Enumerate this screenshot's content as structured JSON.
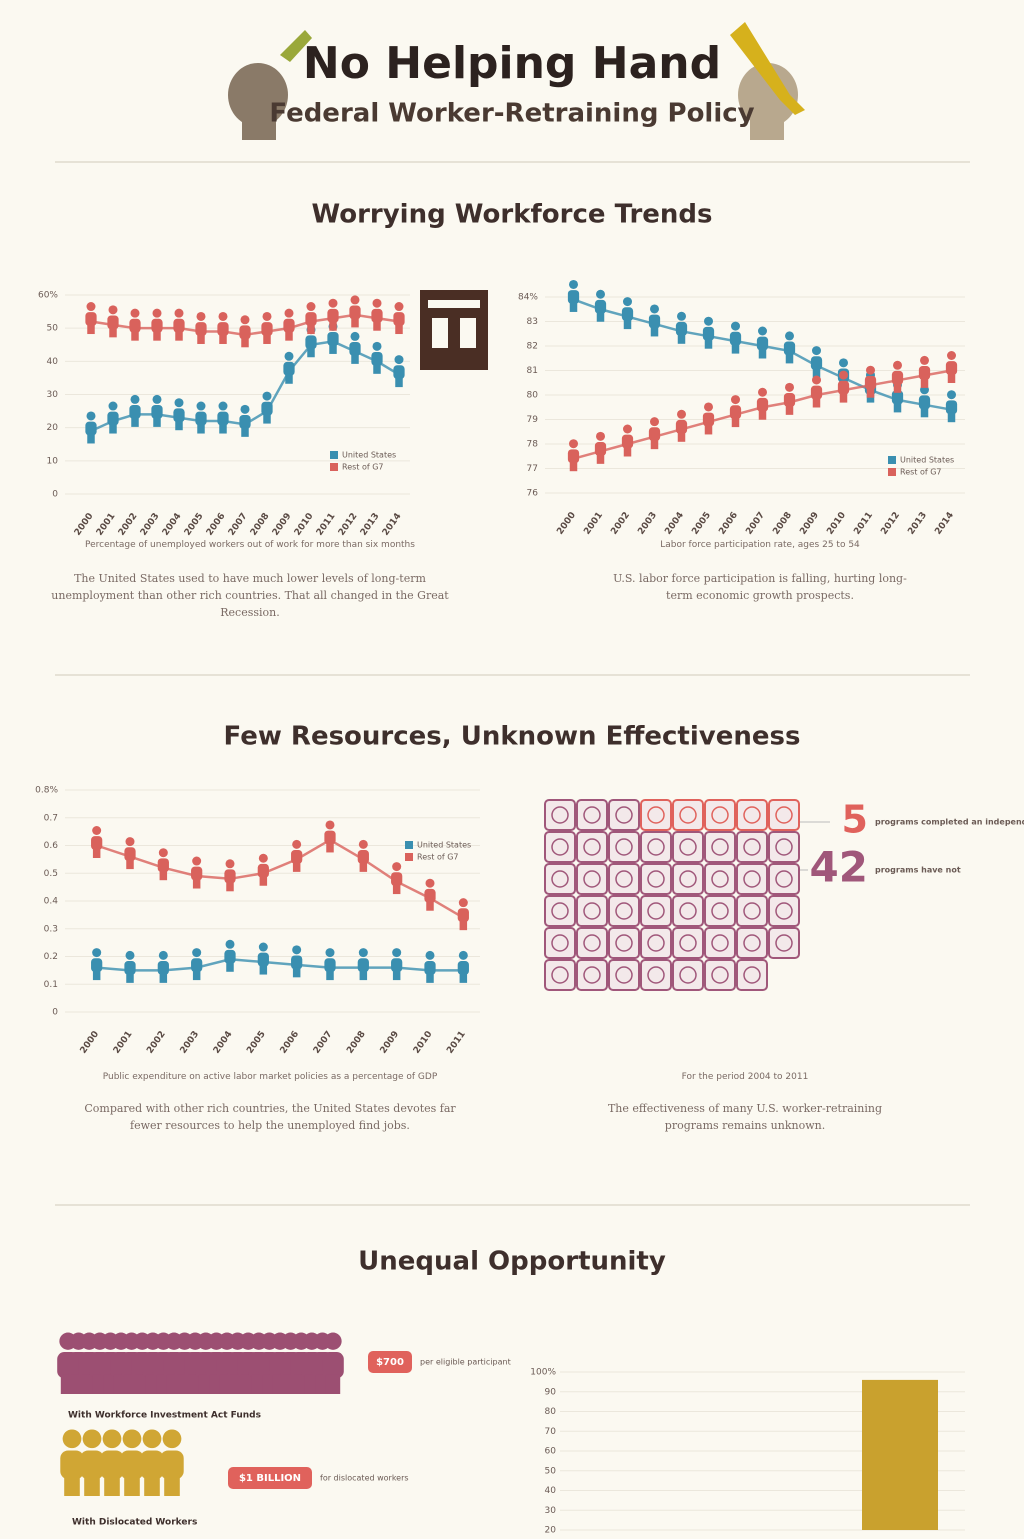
{
  "header": {
    "title": "No Helping Hand",
    "subtitle": "Federal Worker-Retraining Policy"
  },
  "sections": [
    {
      "title": "Worrying Workforce Trends"
    },
    {
      "title": "Few Resources, Unknown Effectiveness"
    },
    {
      "title": "Unequal Opportunity"
    }
  ],
  "chart_data": [
    {
      "type": "line",
      "caption": "Percentage of unemployed workers out of work for more than six months",
      "note": "The United States used to have much lower levels of long-term unemployment than other rich countries. That all changed in the Great Recession.",
      "categories": [
        "2000",
        "2001",
        "2002",
        "2003",
        "2004",
        "2005",
        "2006",
        "2007",
        "2008",
        "2009",
        "2010",
        "2011",
        "2012",
        "2013",
        "2014"
      ],
      "series": [
        {
          "name": "United States",
          "color": "#3a8fb0",
          "values": [
            19,
            22,
            24,
            24,
            23,
            22,
            22,
            21,
            25,
            37,
            45,
            46,
            43,
            40,
            36
          ]
        },
        {
          "name": "Rest of G7",
          "color": "#d9625c",
          "values": [
            52,
            51,
            50,
            50,
            50,
            49,
            49,
            48,
            49,
            50,
            52,
            53,
            54,
            53,
            52
          ]
        }
      ],
      "ylim": [
        0,
        60
      ],
      "yticks": [
        0,
        10,
        20,
        30,
        40,
        50,
        {
          "value": 60,
          "label": "60%"
        }
      ],
      "grid": true
    },
    {
      "type": "line",
      "caption": "Labor force participation rate, ages 25 to 54",
      "note": "U.S. labor force participation is falling, hurting long-term economic growth prospects.",
      "categories": [
        "2000",
        "2001",
        "2002",
        "2003",
        "2004",
        "2005",
        "2006",
        "2007",
        "2008",
        "2009",
        "2010",
        "2011",
        "2012",
        "2013",
        "2014"
      ],
      "series": [
        {
          "name": "United States",
          "color": "#3a8fb0",
          "values": [
            83.9,
            83.5,
            83.2,
            82.9,
            82.6,
            82.4,
            82.2,
            82.0,
            81.8,
            81.2,
            80.7,
            80.2,
            79.8,
            79.6,
            79.4
          ]
        },
        {
          "name": "Rest of G7",
          "color": "#d9625c",
          "values": [
            77.4,
            77.7,
            78.0,
            78.3,
            78.6,
            78.9,
            79.2,
            79.5,
            79.7,
            80.0,
            80.2,
            80.4,
            80.6,
            80.8,
            81.0
          ]
        }
      ],
      "ylim": [
        76,
        84
      ],
      "yticks": [
        76,
        77,
        78,
        79,
        80,
        81,
        82,
        83,
        {
          "value": 84,
          "label": "84%"
        }
      ],
      "grid": true
    },
    {
      "type": "line",
      "caption": "Public expenditure on active labor market policies as a percentage of GDP",
      "note": "Compared with other rich countries, the United States devotes far fewer resources to help the unemployed find jobs.",
      "categories": [
        "2000",
        "2001",
        "2002",
        "2003",
        "2004",
        "2005",
        "2006",
        "2007",
        "2008",
        "2009",
        "2010",
        "2011"
      ],
      "series": [
        {
          "name": "United States",
          "color": "#3a8fb0",
          "values": [
            0.16,
            0.15,
            0.15,
            0.16,
            0.19,
            0.18,
            0.17,
            0.16,
            0.16,
            0.16,
            0.15,
            0.15
          ]
        },
        {
          "name": "Rest of G7",
          "color": "#d9625c",
          "values": [
            0.6,
            0.56,
            0.52,
            0.49,
            0.48,
            0.5,
            0.55,
            0.62,
            0.55,
            0.47,
            0.41,
            0.34
          ]
        }
      ],
      "ylim": [
        0,
        0.8
      ],
      "yticks": [
        0,
        0.1,
        0.2,
        0.3,
        0.4,
        0.5,
        0.6,
        0.7,
        {
          "value": 0.8,
          "label": "0.8%"
        }
      ],
      "grid": true
    },
    {
      "type": "waffle",
      "caption": "For the period 2004 to 2011",
      "note": "The effectiveness of many U.S. worker-retraining programs remains unknown.",
      "series": [
        {
          "name": "programs completed an independent impact study",
          "color": "#e0625c",
          "value": 5
        },
        {
          "name": "programs have not",
          "color": "#a0577a",
          "value": 42
        }
      ]
    },
    {
      "type": "bar",
      "categories": [
        null
      ],
      "values": [
        96
      ],
      "color": "#c9a12e",
      "ylim": [
        20,
        100
      ],
      "yticks": [
        20,
        30,
        40,
        50,
        60,
        70,
        80,
        90,
        {
          "value": 100,
          "label": "100%"
        }
      ],
      "grid": true
    }
  ],
  "opportunity": [
    {
      "label": "With Workforce Investment Act Funds",
      "tag": "$700",
      "note": "per eligible participant"
    },
    {
      "label": "With Dislocated Workers",
      "tag": "$1 BILLION",
      "note": "for dislocated workers"
    }
  ]
}
